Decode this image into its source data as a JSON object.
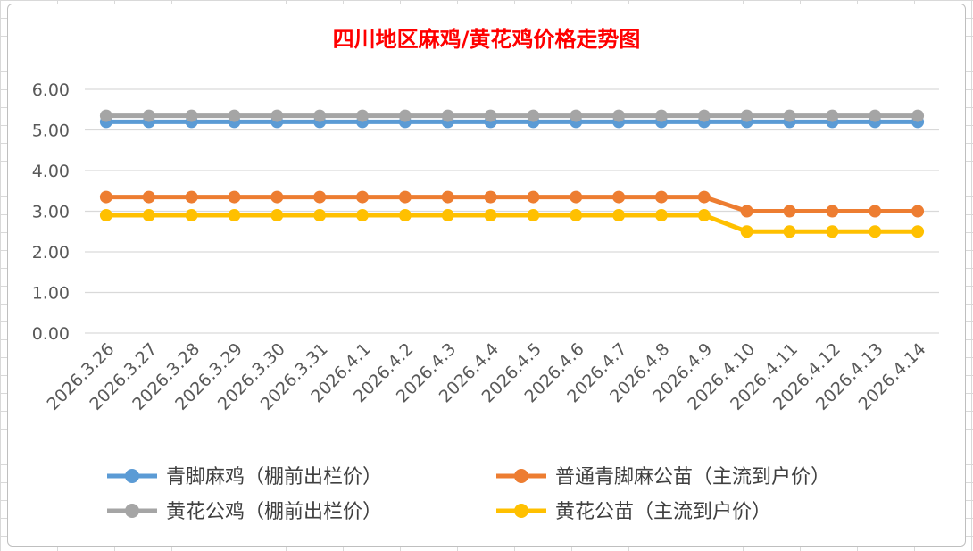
{
  "chart_data": {
    "type": "line",
    "title": "四川地区麻鸡/黄花鸡价格走势图",
    "xlabel": "",
    "ylabel": "",
    "ylim": [
      0,
      6
    ],
    "yticks": [
      "0.00",
      "1.00",
      "2.00",
      "3.00",
      "4.00",
      "5.00",
      "6.00"
    ],
    "grid": true,
    "legend_position": "bottom",
    "categories": [
      "2026.3.26",
      "2026.3.27",
      "2026.3.28",
      "2026.3.29",
      "2026.3.30",
      "2026.3.31",
      "2026.4.1",
      "2026.4.2",
      "2026.4.3",
      "2026.4.4",
      "2026.4.5",
      "2026.4.6",
      "2026.4.7",
      "2026.4.8",
      "2026.4.9",
      "2026.4.10",
      "2026.4.11",
      "2026.4.12",
      "2026.4.13",
      "2026.4.14"
    ],
    "series": [
      {
        "name": "青脚麻鸡（棚前出栏价）",
        "color": "#5b9bd5",
        "values": [
          5.2,
          5.2,
          5.2,
          5.2,
          5.2,
          5.2,
          5.2,
          5.2,
          5.2,
          5.2,
          5.2,
          5.2,
          5.2,
          5.2,
          5.2,
          5.2,
          5.2,
          5.2,
          5.2,
          5.2
        ]
      },
      {
        "name": "普通青脚麻公苗（主流到户价）",
        "color": "#ed7d31",
        "values": [
          3.35,
          3.35,
          3.35,
          3.35,
          3.35,
          3.35,
          3.35,
          3.35,
          3.35,
          3.35,
          3.35,
          3.35,
          3.35,
          3.35,
          3.35,
          3.0,
          3.0,
          3.0,
          3.0,
          3.0
        ]
      },
      {
        "name": "黄花公鸡（棚前出栏价）",
        "color": "#a5a5a5",
        "values": [
          5.35,
          5.35,
          5.35,
          5.35,
          5.35,
          5.35,
          5.35,
          5.35,
          5.35,
          5.35,
          5.35,
          5.35,
          5.35,
          5.35,
          5.35,
          5.35,
          5.35,
          5.35,
          5.35,
          5.35
        ]
      },
      {
        "name": "黄花公苗（主流到户价）",
        "color": "#ffc000",
        "values": [
          2.9,
          2.9,
          2.9,
          2.9,
          2.9,
          2.9,
          2.9,
          2.9,
          2.9,
          2.9,
          2.9,
          2.9,
          2.9,
          2.9,
          2.9,
          2.5,
          2.5,
          2.5,
          2.5,
          2.5
        ]
      }
    ]
  }
}
